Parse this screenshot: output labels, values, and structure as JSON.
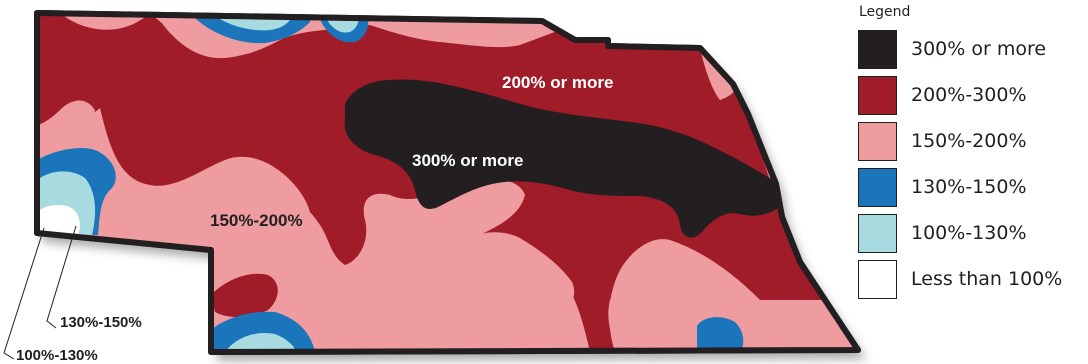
{
  "colors": {
    "c300_or_more": "#231f20",
    "c200_300": "#a11c29",
    "c150_200": "#ee9ca0",
    "c130_150": "#1b75bb",
    "c100_130": "#a8dbe0",
    "less_100": "#ffffff",
    "border": "#231f20",
    "shadow": "#8e8e8e"
  },
  "map": {
    "labels": {
      "north": "200% or more",
      "center": "300% or more",
      "west": "150%-200%"
    },
    "callouts": {
      "c130_150": "130%-150%",
      "c100_130": "100%-130%"
    }
  },
  "legend": {
    "title": "Legend",
    "items": [
      {
        "label": "300% or more",
        "color": "#231f20"
      },
      {
        "label": "200%-300%",
        "color": "#a11c29"
      },
      {
        "label": "150%-200%",
        "color": "#ee9ca0"
      },
      {
        "label": "130%-150%",
        "color": "#1b75bb"
      },
      {
        "label": "100%-130%",
        "color": "#a8dbe0"
      },
      {
        "label": "Less than 100%",
        "color": "#ffffff"
      }
    ]
  }
}
